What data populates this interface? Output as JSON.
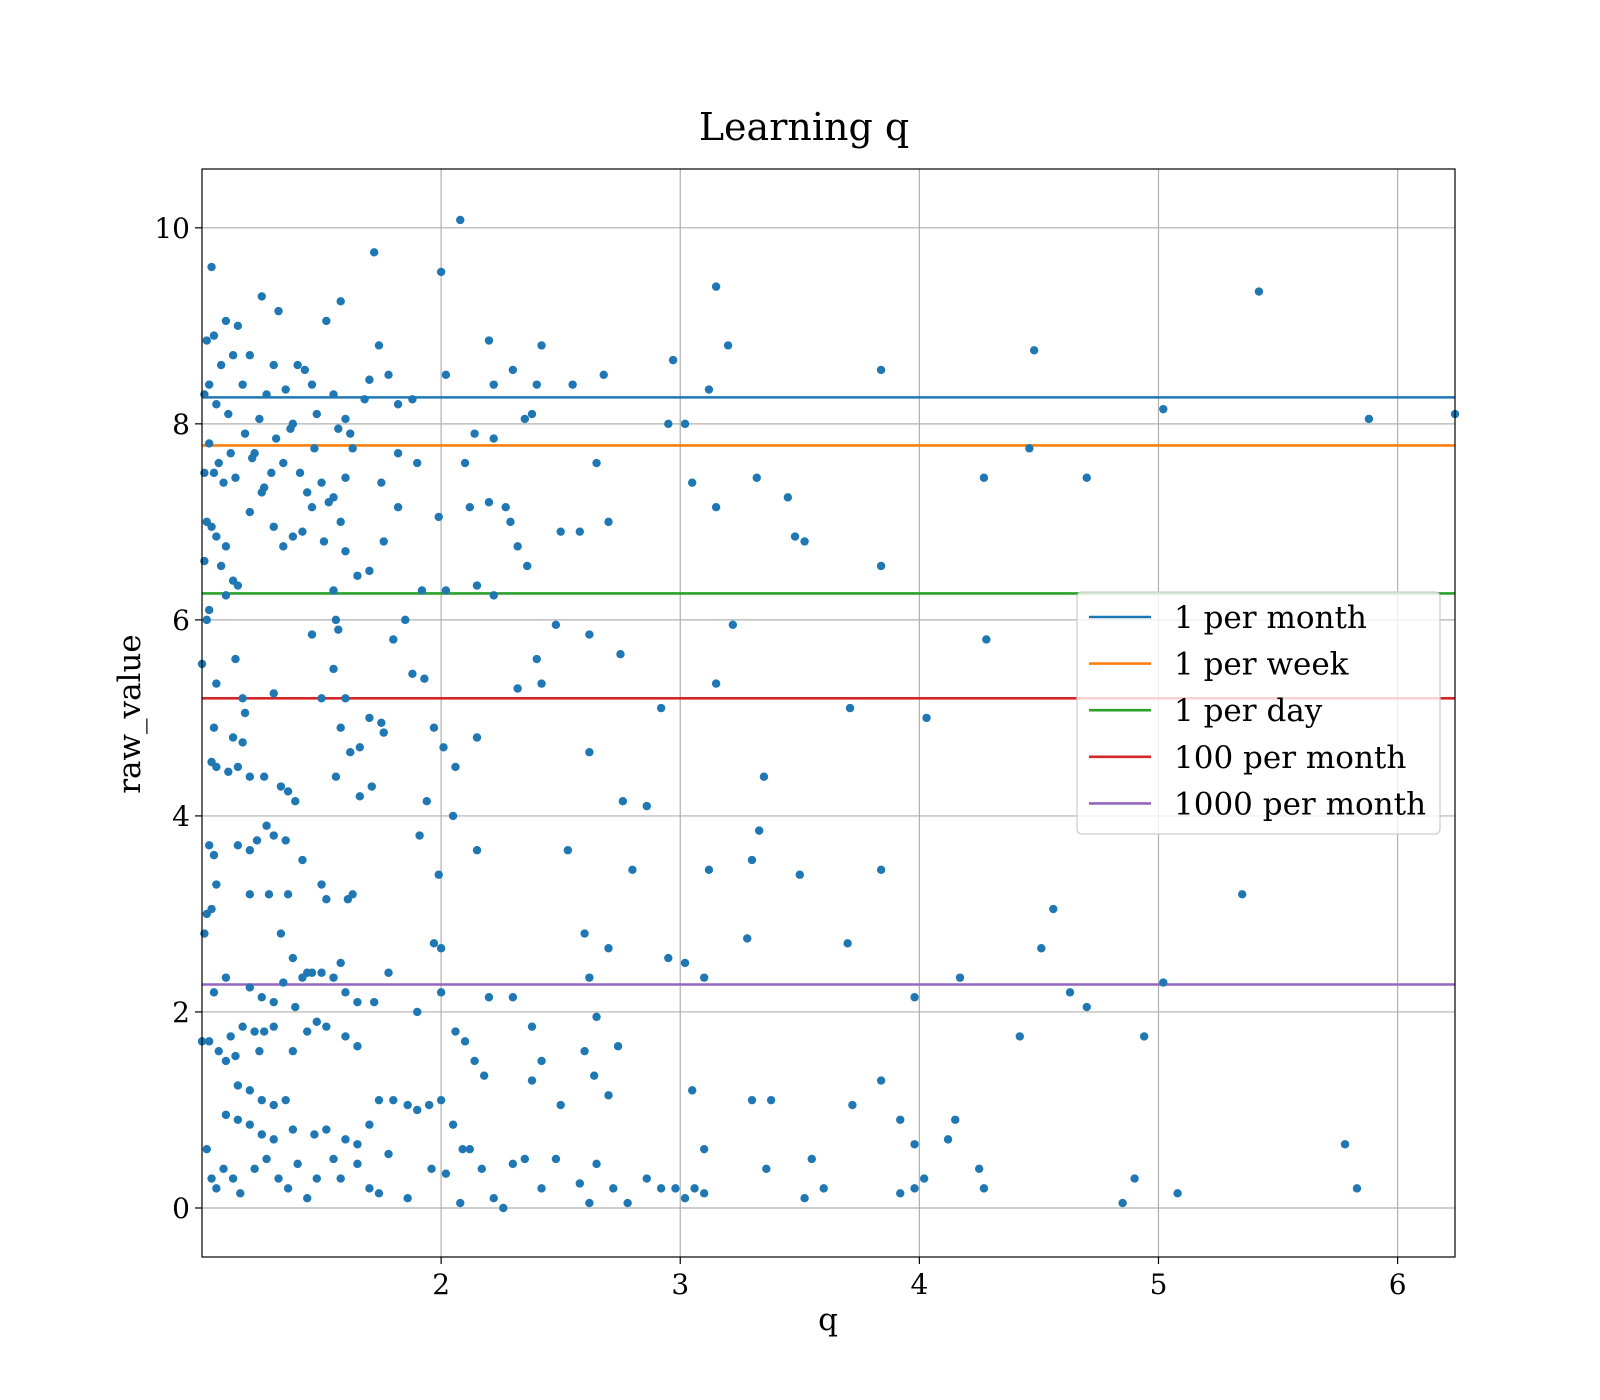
{
  "chart_data": {
    "type": "scatter",
    "title": "Learning q",
    "xlabel": "q",
    "ylabel": "raw_value",
    "xlim": [
      1.0,
      6.24
    ],
    "ylim": [
      -0.5,
      10.6
    ],
    "x_ticks": [
      2,
      3,
      4,
      5,
      6
    ],
    "y_ticks": [
      0,
      2,
      4,
      6,
      8,
      10
    ],
    "grid": true,
    "legend_position": "center-right",
    "point_color": "#1f77b4",
    "scatter_points": [
      [
        1.01,
        8.3
      ],
      [
        1.02,
        8.85
      ],
      [
        1.03,
        8.4
      ],
      [
        1.05,
        8.9
      ],
      [
        1.06,
        8.2
      ],
      [
        1.08,
        8.6
      ],
      [
        1.1,
        9.05
      ],
      [
        1.11,
        8.1
      ],
      [
        1.04,
        9.6
      ],
      [
        1.13,
        8.7
      ],
      [
        1.15,
        9.0
      ],
      [
        1.17,
        8.4
      ],
      [
        1.2,
        8.7
      ],
      [
        1.22,
        7.7
      ],
      [
        1.25,
        9.3
      ],
      [
        1.27,
        8.3
      ],
      [
        1.3,
        8.6
      ],
      [
        1.32,
        9.15
      ],
      [
        1.35,
        8.35
      ],
      [
        1.38,
        8.0
      ],
      [
        1.4,
        8.6
      ],
      [
        1.43,
        8.55
      ],
      [
        1.46,
        8.4
      ],
      [
        1.48,
        8.1
      ],
      [
        1.52,
        9.05
      ],
      [
        1.55,
        8.3
      ],
      [
        1.58,
        9.25
      ],
      [
        1.6,
        8.05
      ],
      [
        1.62,
        7.9
      ],
      [
        1.68,
        8.25
      ],
      [
        1.72,
        9.75
      ],
      [
        1.74,
        8.8
      ],
      [
        1.78,
        8.5
      ],
      [
        1.82,
        8.2
      ],
      [
        1.88,
        8.25
      ],
      [
        1.01,
        7.5
      ],
      [
        1.03,
        7.8
      ],
      [
        1.05,
        7.5
      ],
      [
        1.07,
        7.6
      ],
      [
        1.09,
        7.4
      ],
      [
        1.12,
        7.7
      ],
      [
        1.14,
        7.45
      ],
      [
        1.18,
        7.9
      ],
      [
        1.21,
        7.65
      ],
      [
        1.24,
        8.05
      ],
      [
        1.26,
        7.35
      ],
      [
        1.29,
        7.5
      ],
      [
        1.31,
        7.85
      ],
      [
        1.34,
        7.6
      ],
      [
        1.37,
        7.95
      ],
      [
        1.41,
        7.5
      ],
      [
        1.44,
        7.3
      ],
      [
        1.47,
        7.75
      ],
      [
        1.5,
        7.4
      ],
      [
        1.53,
        7.2
      ],
      [
        1.57,
        7.95
      ],
      [
        1.6,
        7.45
      ],
      [
        1.63,
        7.75
      ],
      [
        1.7,
        8.45
      ],
      [
        1.75,
        7.4
      ],
      [
        1.82,
        7.7
      ],
      [
        1.9,
        7.6
      ],
      [
        1.02,
        7.0
      ],
      [
        1.04,
        6.95
      ],
      [
        1.06,
        6.85
      ],
      [
        1.08,
        6.55
      ],
      [
        1.1,
        6.75
      ],
      [
        1.13,
        6.4
      ],
      [
        1.15,
        6.35
      ],
      [
        1.2,
        7.1
      ],
      [
        1.25,
        7.3
      ],
      [
        1.3,
        6.95
      ],
      [
        1.34,
        6.75
      ],
      [
        1.38,
        6.85
      ],
      [
        1.42,
        6.9
      ],
      [
        1.46,
        7.15
      ],
      [
        1.51,
        6.8
      ],
      [
        1.55,
        7.25
      ],
      [
        1.58,
        7.0
      ],
      [
        1.6,
        6.7
      ],
      [
        1.65,
        6.45
      ],
      [
        1.7,
        6.5
      ],
      [
        1.76,
        6.8
      ],
      [
        1.82,
        7.15
      ],
      [
        1.92,
        6.3
      ],
      [
        1.99,
        7.05
      ],
      [
        1.01,
        6.6
      ],
      [
        1.02,
        6.0
      ],
      [
        1.03,
        6.1
      ],
      [
        1.1,
        6.25
      ],
      [
        1.55,
        6.3
      ],
      [
        1.57,
        5.9
      ],
      [
        1.46,
        5.85
      ],
      [
        1.56,
        6.0
      ],
      [
        1.8,
        5.8
      ],
      [
        1.85,
        6.0
      ],
      [
        1.0,
        5.55
      ],
      [
        1.06,
        5.35
      ],
      [
        1.14,
        5.6
      ],
      [
        1.17,
        5.2
      ],
      [
        1.18,
        5.05
      ],
      [
        1.3,
        5.25
      ],
      [
        1.5,
        5.2
      ],
      [
        1.55,
        5.5
      ],
      [
        1.6,
        5.2
      ],
      [
        1.66,
        4.7
      ],
      [
        1.7,
        5.0
      ],
      [
        1.75,
        4.95
      ],
      [
        1.88,
        5.45
      ],
      [
        1.93,
        5.4
      ],
      [
        1.05,
        4.9
      ],
      [
        1.04,
        4.55
      ],
      [
        1.06,
        4.5
      ],
      [
        1.11,
        4.45
      ],
      [
        1.13,
        4.8
      ],
      [
        1.15,
        4.5
      ],
      [
        1.17,
        4.75
      ],
      [
        1.2,
        4.4
      ],
      [
        1.26,
        4.4
      ],
      [
        1.33,
        4.3
      ],
      [
        1.36,
        4.25
      ],
      [
        1.39,
        4.15
      ],
      [
        1.56,
        4.4
      ],
      [
        1.58,
        4.9
      ],
      [
        1.62,
        4.65
      ],
      [
        1.66,
        4.2
      ],
      [
        1.71,
        4.3
      ],
      [
        1.76,
        4.85
      ],
      [
        1.94,
        4.15
      ],
      [
        1.97,
        4.9
      ],
      [
        2.01,
        4.7
      ],
      [
        2.05,
        4.0
      ],
      [
        1.03,
        3.7
      ],
      [
        1.05,
        3.6
      ],
      [
        1.06,
        3.3
      ],
      [
        1.15,
        3.7
      ],
      [
        1.2,
        3.65
      ],
      [
        1.23,
        3.75
      ],
      [
        1.27,
        3.9
      ],
      [
        1.3,
        3.8
      ],
      [
        1.35,
        3.75
      ],
      [
        1.42,
        3.55
      ],
      [
        1.02,
        3.0
      ],
      [
        1.04,
        3.05
      ],
      [
        1.01,
        2.8
      ],
      [
        1.2,
        3.2
      ],
      [
        1.28,
        3.2
      ],
      [
        1.36,
        3.2
      ],
      [
        1.5,
        3.3
      ],
      [
        1.52,
        3.15
      ],
      [
        1.61,
        3.15
      ],
      [
        1.63,
        3.2
      ],
      [
        1.91,
        3.8
      ],
      [
        1.99,
        3.4
      ],
      [
        1.33,
        2.8
      ],
      [
        1.38,
        2.55
      ],
      [
        1.42,
        2.35
      ],
      [
        1.46,
        2.4
      ],
      [
        1.5,
        2.4
      ],
      [
        1.55,
        2.35
      ],
      [
        1.58,
        2.5
      ],
      [
        1.6,
        2.2
      ],
      [
        1.65,
        2.1
      ],
      [
        1.72,
        2.1
      ],
      [
        1.78,
        2.4
      ],
      [
        1.97,
        2.7
      ],
      [
        2.0,
        2.65
      ],
      [
        1.05,
        2.2
      ],
      [
        1.1,
        2.35
      ],
      [
        1.2,
        2.25
      ],
      [
        1.25,
        2.15
      ],
      [
        1.3,
        2.1
      ],
      [
        1.34,
        2.3
      ],
      [
        1.39,
        2.05
      ],
      [
        1.44,
        2.4
      ],
      [
        1.9,
        2.0
      ],
      [
        2.0,
        2.2
      ],
      [
        2.06,
        1.8
      ],
      [
        2.1,
        1.7
      ],
      [
        2.2,
        2.15
      ],
      [
        2.3,
        2.15
      ],
      [
        2.38,
        1.85
      ],
      [
        1.0,
        1.7
      ],
      [
        1.03,
        1.7
      ],
      [
        1.07,
        1.6
      ],
      [
        1.12,
        1.75
      ],
      [
        1.14,
        1.55
      ],
      [
        1.17,
        1.85
      ],
      [
        1.22,
        1.8
      ],
      [
        1.24,
        1.6
      ],
      [
        1.26,
        1.8
      ],
      [
        1.3,
        1.85
      ],
      [
        1.38,
        1.6
      ],
      [
        1.44,
        1.8
      ],
      [
        1.48,
        1.9
      ],
      [
        1.52,
        1.85
      ],
      [
        1.6,
        1.75
      ],
      [
        1.65,
        1.65
      ],
      [
        1.1,
        1.5
      ],
      [
        1.15,
        1.25
      ],
      [
        1.2,
        1.2
      ],
      [
        1.25,
        1.1
      ],
      [
        1.3,
        1.05
      ],
      [
        1.35,
        1.1
      ],
      [
        1.1,
        0.95
      ],
      [
        1.15,
        0.9
      ],
      [
        1.2,
        0.85
      ],
      [
        1.25,
        0.75
      ],
      [
        1.3,
        0.7
      ],
      [
        1.38,
        0.8
      ],
      [
        1.47,
        0.75
      ],
      [
        1.52,
        0.8
      ],
      [
        1.6,
        0.7
      ],
      [
        1.65,
        0.65
      ],
      [
        1.7,
        0.85
      ],
      [
        1.74,
        1.1
      ],
      [
        1.8,
        1.1
      ],
      [
        1.86,
        1.05
      ],
      [
        1.9,
        1.0
      ],
      [
        1.95,
        1.05
      ],
      [
        2.0,
        1.1
      ],
      [
        2.05,
        0.85
      ],
      [
        2.09,
        0.6
      ],
      [
        2.14,
        1.5
      ],
      [
        2.18,
        1.35
      ],
      [
        2.38,
        1.3
      ],
      [
        2.42,
        1.5
      ],
      [
        2.5,
        1.05
      ],
      [
        2.6,
        1.6
      ],
      [
        2.64,
        1.35
      ],
      [
        2.7,
        1.15
      ],
      [
        1.02,
        0.6
      ],
      [
        1.04,
        0.3
      ],
      [
        1.06,
        0.2
      ],
      [
        1.09,
        0.4
      ],
      [
        1.13,
        0.3
      ],
      [
        1.16,
        0.15
      ],
      [
        1.22,
        0.4
      ],
      [
        1.27,
        0.5
      ],
      [
        1.32,
        0.3
      ],
      [
        1.36,
        0.2
      ],
      [
        1.4,
        0.45
      ],
      [
        1.44,
        0.1
      ],
      [
        1.48,
        0.3
      ],
      [
        1.55,
        0.5
      ],
      [
        1.58,
        0.3
      ],
      [
        1.65,
        0.45
      ],
      [
        1.7,
        0.2
      ],
      [
        1.74,
        0.15
      ],
      [
        1.78,
        0.55
      ],
      [
        1.86,
        0.1
      ],
      [
        1.96,
        0.4
      ],
      [
        2.02,
        0.35
      ],
      [
        2.08,
        0.05
      ],
      [
        2.12,
        0.6
      ],
      [
        2.17,
        0.4
      ],
      [
        2.22,
        0.1
      ],
      [
        2.26,
        0.0
      ],
      [
        2.3,
        0.45
      ],
      [
        2.35,
        0.5
      ],
      [
        2.42,
        0.2
      ],
      [
        2.48,
        0.5
      ],
      [
        2.58,
        0.25
      ],
      [
        2.62,
        0.05
      ],
      [
        2.65,
        0.45
      ],
      [
        2.72,
        0.2
      ],
      [
        2.78,
        0.05
      ],
      [
        2.08,
        10.08
      ],
      [
        2.0,
        9.55
      ],
      [
        2.2,
        8.85
      ],
      [
        2.22,
        8.4
      ],
      [
        2.3,
        8.55
      ],
      [
        2.4,
        8.4
      ],
      [
        2.42,
        8.8
      ],
      [
        2.55,
        8.4
      ],
      [
        2.68,
        8.5
      ],
      [
        2.97,
        8.65
      ],
      [
        3.02,
        8.0
      ],
      [
        3.15,
        9.4
      ],
      [
        3.2,
        8.8
      ],
      [
        3.84,
        8.55
      ],
      [
        4.48,
        8.75
      ],
      [
        5.42,
        9.35
      ],
      [
        2.02,
        8.5
      ],
      [
        2.14,
        7.9
      ],
      [
        2.22,
        7.85
      ],
      [
        2.35,
        8.05
      ],
      [
        2.38,
        8.1
      ],
      [
        2.12,
        7.15
      ],
      [
        2.1,
        7.6
      ],
      [
        2.2,
        7.2
      ],
      [
        2.27,
        7.15
      ],
      [
        2.29,
        7.0
      ],
      [
        2.32,
        6.75
      ],
      [
        2.36,
        6.55
      ],
      [
        2.5,
        6.9
      ],
      [
        2.58,
        6.9
      ],
      [
        2.65,
        7.6
      ],
      [
        2.7,
        7.0
      ],
      [
        2.95,
        8.0
      ],
      [
        3.05,
        7.4
      ],
      [
        3.12,
        8.35
      ],
      [
        3.15,
        7.15
      ],
      [
        3.32,
        7.45
      ],
      [
        3.45,
        7.25
      ],
      [
        3.48,
        6.85
      ],
      [
        3.52,
        6.8
      ],
      [
        3.84,
        6.55
      ],
      [
        4.27,
        7.45
      ],
      [
        4.46,
        7.75
      ],
      [
        4.7,
        7.45
      ],
      [
        5.02,
        8.15
      ],
      [
        5.88,
        8.05
      ],
      [
        6.24,
        8.1
      ],
      [
        2.15,
        6.35
      ],
      [
        2.22,
        6.25
      ],
      [
        2.02,
        6.3
      ],
      [
        2.48,
        5.95
      ],
      [
        2.62,
        5.85
      ],
      [
        2.75,
        5.65
      ],
      [
        2.4,
        5.6
      ],
      [
        2.42,
        5.35
      ],
      [
        2.32,
        5.3
      ],
      [
        3.15,
        5.35
      ],
      [
        3.22,
        5.95
      ],
      [
        4.28,
        5.8
      ],
      [
        2.92,
        5.1
      ],
      [
        3.71,
        5.1
      ],
      [
        4.03,
        5.0
      ],
      [
        2.06,
        4.5
      ],
      [
        2.15,
        4.8
      ],
      [
        2.62,
        4.65
      ],
      [
        2.76,
        4.15
      ],
      [
        2.86,
        4.1
      ],
      [
        3.35,
        4.4
      ],
      [
        2.15,
        3.65
      ],
      [
        2.53,
        3.65
      ],
      [
        2.8,
        3.45
      ],
      [
        3.12,
        3.45
      ],
      [
        3.33,
        3.85
      ],
      [
        3.3,
        3.55
      ],
      [
        3.5,
        3.4
      ],
      [
        3.84,
        3.45
      ],
      [
        2.6,
        2.8
      ],
      [
        2.62,
        2.35
      ],
      [
        2.7,
        2.65
      ],
      [
        2.95,
        2.55
      ],
      [
        3.02,
        2.5
      ],
      [
        3.1,
        2.35
      ],
      [
        3.28,
        2.75
      ],
      [
        3.7,
        2.7
      ],
      [
        3.98,
        2.15
      ],
      [
        4.17,
        2.35
      ],
      [
        4.51,
        2.65
      ],
      [
        4.56,
        3.05
      ],
      [
        4.63,
        2.2
      ],
      [
        4.7,
        2.05
      ],
      [
        5.02,
        2.3
      ],
      [
        5.35,
        3.2
      ],
      [
        2.65,
        1.95
      ],
      [
        2.74,
        1.65
      ],
      [
        2.86,
        0.3
      ],
      [
        2.92,
        0.2
      ],
      [
        2.98,
        0.2
      ],
      [
        3.02,
        0.1
      ],
      [
        3.05,
        1.2
      ],
      [
        3.06,
        0.2
      ],
      [
        3.1,
        0.15
      ],
      [
        3.1,
        0.6
      ],
      [
        3.3,
        1.1
      ],
      [
        3.36,
        0.4
      ],
      [
        3.38,
        1.1
      ],
      [
        3.52,
        0.1
      ],
      [
        3.55,
        0.5
      ],
      [
        3.6,
        0.2
      ],
      [
        3.72,
        1.05
      ],
      [
        3.84,
        1.3
      ],
      [
        3.92,
        0.9
      ],
      [
        3.98,
        0.65
      ],
      [
        3.98,
        0.2
      ],
      [
        4.02,
        0.3
      ],
      [
        4.12,
        0.7
      ],
      [
        4.15,
        0.9
      ],
      [
        4.25,
        0.4
      ],
      [
        4.27,
        0.2
      ],
      [
        4.42,
        1.75
      ],
      [
        4.85,
        0.05
      ],
      [
        4.9,
        0.3
      ],
      [
        4.94,
        1.75
      ],
      [
        5.08,
        0.15
      ],
      [
        5.78,
        0.65
      ],
      [
        5.83,
        0.2
      ],
      [
        3.92,
        0.15
      ]
    ],
    "series": [
      {
        "name": "1 per month",
        "value": 8.27,
        "color": "#1f77b4"
      },
      {
        "name": "1 per week",
        "value": 7.78,
        "color": "#ff7f0e"
      },
      {
        "name": "1 per day",
        "value": 6.27,
        "color": "#2ca02c"
      },
      {
        "name": "100 per month",
        "value": 5.2,
        "color": "#d62728"
      },
      {
        "name": "1000 per month",
        "value": 2.28,
        "color": "#9467bd"
      }
    ]
  }
}
